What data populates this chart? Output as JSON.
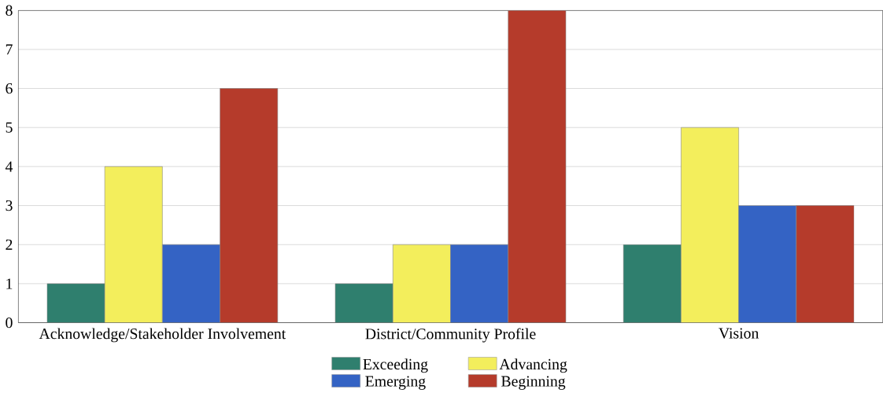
{
  "chart_data": {
    "type": "bar",
    "categories": [
      "Acknowledge/Stakeholder Involvement",
      "District/Community Profile",
      "Vision"
    ],
    "series": [
      {
        "name": "Exceeding",
        "color": "#2f7f6e",
        "values": [
          1,
          1,
          2
        ]
      },
      {
        "name": "Advancing",
        "color": "#f3ee5c",
        "values": [
          4,
          2,
          5
        ]
      },
      {
        "name": "Emerging",
        "color": "#3463c4",
        "values": [
          2,
          2,
          3
        ]
      },
      {
        "name": "Beginning",
        "color": "#b53b2b",
        "values": [
          6,
          8,
          3
        ]
      }
    ],
    "ylim": [
      0,
      8
    ],
    "yticks": [
      0,
      1,
      2,
      3,
      4,
      5,
      6,
      7,
      8
    ],
    "grid": "y",
    "legend": "bottom"
  }
}
